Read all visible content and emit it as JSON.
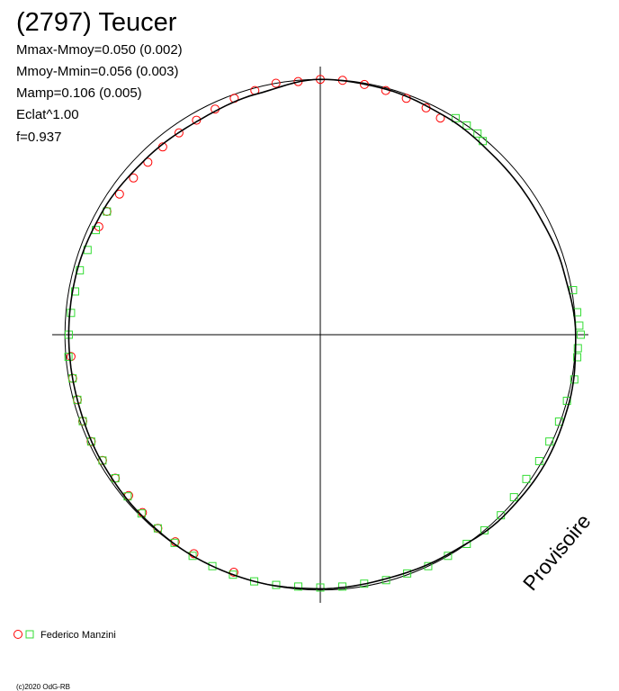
{
  "chart_data": {
    "type": "polar",
    "title": "(2797) Teucer",
    "stats": [
      "Mmax-Mmoy=0.050 (0.002)",
      "Mmoy-Mmin=0.056 (0.003)",
      "Mamp=0.106 (0.005)",
      "Eclat^1.00",
      "f=0.937"
    ],
    "watermark": "Provisoire",
    "credit": "(c)2020 OdG-RB",
    "legend": "Federico Manzini",
    "rlim": [
      0,
      1.05
    ],
    "circle_r": 1,
    "series": [
      {
        "marker": "circle",
        "color": "#ff0000",
        "angles": [
          0,
          5,
          10,
          15,
          20,
          25,
          29,
          355,
          350,
          345,
          340,
          335,
          330,
          325,
          320,
          315,
          310,
          305,
          300,
          296,
          265,
          260,
          255,
          250,
          245,
          240,
          235,
          230,
          225,
          220,
          215,
          210,
          200
        ],
        "r": [
          1.0,
          1.0,
          0.995,
          0.99,
          0.985,
          0.98,
          0.97,
          0.995,
          1.0,
          0.99,
          0.985,
          0.975,
          0.97,
          0.965,
          0.96,
          0.955,
          0.955,
          0.96,
          0.965,
          0.965,
          0.98,
          0.985,
          0.985,
          0.99,
          0.99,
          0.985,
          0.98,
          0.98,
          0.985,
          0.99,
          0.99,
          0.99,
          0.99
        ]
      },
      {
        "marker": "square",
        "color": "#33dd33",
        "angles": [
          32,
          35,
          38,
          40,
          80,
          85,
          88,
          90,
          93,
          95,
          100,
          105,
          110,
          115,
          120,
          125,
          130,
          135,
          140,
          145,
          150,
          155,
          160,
          165,
          170,
          175,
          180,
          185,
          190,
          195,
          200,
          205,
          210,
          215,
          220,
          225,
          230,
          235,
          240,
          245,
          250,
          255,
          260,
          265,
          270,
          275,
          280,
          285,
          290,
          295,
          300
        ],
        "r": [
          1.0,
          1.0,
          1.0,
          0.99,
          1.005,
          1.01,
          1.015,
          1.02,
          1.01,
          1.01,
          1.01,
          1.0,
          0.995,
          0.99,
          0.99,
          0.985,
          0.99,
          1.0,
          1.0,
          1.0,
          1.0,
          1.0,
          0.995,
          0.995,
          0.99,
          0.99,
          0.99,
          0.99,
          0.995,
          1.0,
          1.0,
          1.0,
          1.0,
          0.995,
          0.99,
          0.99,
          0.985,
          0.98,
          0.985,
          0.99,
          0.99,
          0.985,
          0.985,
          0.99,
          0.985,
          0.98,
          0.975,
          0.975,
          0.97,
          0.97,
          0.965
        ]
      }
    ],
    "fit": {
      "angles": [
        0,
        15,
        30,
        45,
        60,
        75,
        90,
        105,
        120,
        135,
        150,
        165,
        180,
        195,
        210,
        225,
        240,
        255,
        270,
        285,
        300,
        315,
        330,
        345,
        360
      ],
      "r": [
        1.0,
        0.995,
        0.985,
        0.975,
        0.975,
        0.985,
        1.0,
        1.01,
        1.015,
        1.01,
        0.995,
        0.99,
        0.995,
        1.0,
        1.0,
        0.995,
        0.99,
        0.985,
        0.985,
        0.985,
        0.98,
        0.97,
        0.965,
        0.975,
        1.0
      ]
    }
  }
}
